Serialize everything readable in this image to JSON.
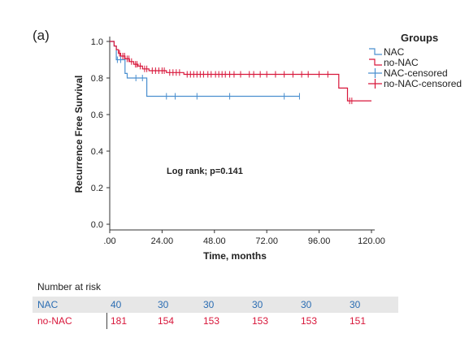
{
  "panel_label": "(a)",
  "chart_data": {
    "type": "line",
    "subtype": "kaplan-meier",
    "xlabel": "Time, months",
    "ylabel": "Recurrence Free Survival",
    "xlim": [
      0,
      120
    ],
    "ylim": [
      0,
      1.0
    ],
    "x_ticks": [
      ".00",
      "24.00",
      "48.00",
      "72.00",
      "96.00",
      "120.00"
    ],
    "x_tick_values": [
      0,
      24,
      48,
      72,
      96,
      120
    ],
    "y_ticks": [
      "0.0",
      "0.2",
      "0.4",
      "0.6",
      "0.8",
      "1.0"
    ],
    "y_tick_values": [
      0,
      0.2,
      0.4,
      0.6,
      0.8,
      1.0
    ],
    "grid": false,
    "annotation": "Log rank; p=0.141",
    "legend": {
      "title": "Groups",
      "position": "top-right",
      "entries": [
        "NAC",
        "no-NAC",
        "NAC-censored",
        "no-NAC-censored"
      ]
    },
    "series": [
      {
        "name": "NAC",
        "color": "#4a8fcf",
        "steps": [
          [
            0,
            1.0
          ],
          [
            2,
            1.0
          ],
          [
            2,
            0.975
          ],
          [
            3,
            0.975
          ],
          [
            3,
            0.9
          ],
          [
            7,
            0.9
          ],
          [
            7,
            0.825
          ],
          [
            8,
            0.825
          ],
          [
            8,
            0.8
          ],
          [
            17,
            0.8
          ],
          [
            17,
            0.7
          ],
          [
            87,
            0.7
          ]
        ],
        "censored": [
          3.5,
          5,
          12,
          15,
          26,
          30,
          40,
          55,
          80,
          87
        ]
      },
      {
        "name": "no-NAC",
        "color": "#d8163a",
        "steps": [
          [
            0,
            1.0
          ],
          [
            2,
            1.0
          ],
          [
            2,
            0.975
          ],
          [
            3,
            0.975
          ],
          [
            3,
            0.955
          ],
          [
            4,
            0.955
          ],
          [
            4,
            0.935
          ],
          [
            5,
            0.935
          ],
          [
            5,
            0.92
          ],
          [
            7,
            0.92
          ],
          [
            7,
            0.905
          ],
          [
            9,
            0.905
          ],
          [
            9,
            0.89
          ],
          [
            11,
            0.89
          ],
          [
            11,
            0.875
          ],
          [
            13,
            0.875
          ],
          [
            13,
            0.865
          ],
          [
            15,
            0.865
          ],
          [
            15,
            0.85
          ],
          [
            18,
            0.85
          ],
          [
            18,
            0.84
          ],
          [
            26,
            0.84
          ],
          [
            26,
            0.83
          ],
          [
            34,
            0.83
          ],
          [
            34,
            0.82
          ],
          [
            105,
            0.82
          ],
          [
            105,
            0.745
          ],
          [
            109,
            0.745
          ],
          [
            109,
            0.675
          ],
          [
            120,
            0.675
          ]
        ],
        "censored": [
          4.5,
          6,
          6.8,
          8,
          8.8,
          10,
          11.8,
          12.5,
          14,
          16,
          17,
          19.5,
          21,
          22.5,
          24,
          25,
          27.5,
          29,
          30.5,
          32,
          35.5,
          37,
          38.5,
          40,
          41.5,
          43,
          45,
          46.5,
          48.5,
          50,
          51.5,
          53,
          55,
          57,
          60,
          64,
          66,
          69,
          72,
          76,
          80,
          84,
          88,
          91,
          96,
          100,
          110,
          111
        ]
      }
    ]
  },
  "risk_table": {
    "title": "Number at risk",
    "rows": [
      {
        "label": "NAC",
        "color": "#2b6db3",
        "values": [
          "40",
          "30",
          "30",
          "30",
          "30",
          "30"
        ]
      },
      {
        "label": "no-NAC",
        "color": "#d8163a",
        "values": [
          "181",
          "154",
          "153",
          "153",
          "153",
          "151"
        ]
      }
    ]
  }
}
